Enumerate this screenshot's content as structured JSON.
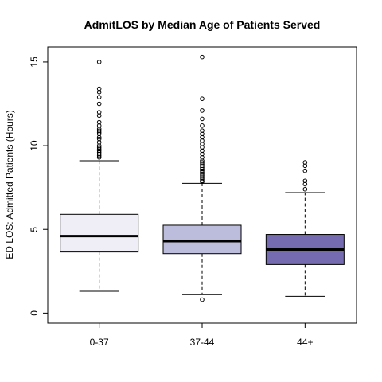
{
  "chart_data": {
    "type": "boxplot",
    "title": "AdmitLOS by Median Age of Patients Served",
    "xlabel": "",
    "ylabel": "ED LOS: Admitted Patients (Hours)",
    "ylim": [
      -0.6,
      15.9
    ],
    "y_ticks": [
      "0",
      "5",
      "10",
      "15"
    ],
    "grid": false,
    "categories": [
      "0-37",
      "37-44",
      "44+"
    ],
    "boxes": [
      {
        "category": "0-37",
        "fill": "#efedf5",
        "whisker_low": 1.3,
        "q1": 3.65,
        "median": 4.6,
        "q3": 5.9,
        "whisker_high": 9.1,
        "outliers": [
          15.0,
          13.4,
          13.2,
          12.9,
          12.5,
          12.0,
          11.8,
          11.4,
          11.2,
          11.0,
          10.9,
          10.8,
          10.7,
          10.5,
          10.4,
          10.2,
          10.0,
          9.9,
          9.8,
          9.7,
          9.6,
          9.5,
          9.4,
          9.3
        ]
      },
      {
        "category": "37-44",
        "fill": "#bcbddc",
        "whisker_low": 1.1,
        "q1": 3.55,
        "median": 4.3,
        "q3": 5.25,
        "whisker_high": 7.75,
        "outliers": [
          0.8,
          15.3,
          12.8,
          12.1,
          11.6,
          11.2,
          10.9,
          10.7,
          10.5,
          10.3,
          10.1,
          9.9,
          9.7,
          9.5,
          9.3,
          9.1,
          9.0,
          8.9,
          8.8,
          8.7,
          8.6,
          8.5,
          8.4,
          8.3,
          8.2,
          8.1,
          8.0,
          7.9,
          7.85
        ]
      },
      {
        "category": "44+",
        "fill": "#756bb1",
        "whisker_low": 1.0,
        "q1": 2.9,
        "median": 3.8,
        "q3": 4.7,
        "whisker_high": 7.2,
        "outliers": [
          7.4,
          7.7,
          7.9,
          8.5,
          8.8,
          9.0
        ]
      }
    ]
  }
}
